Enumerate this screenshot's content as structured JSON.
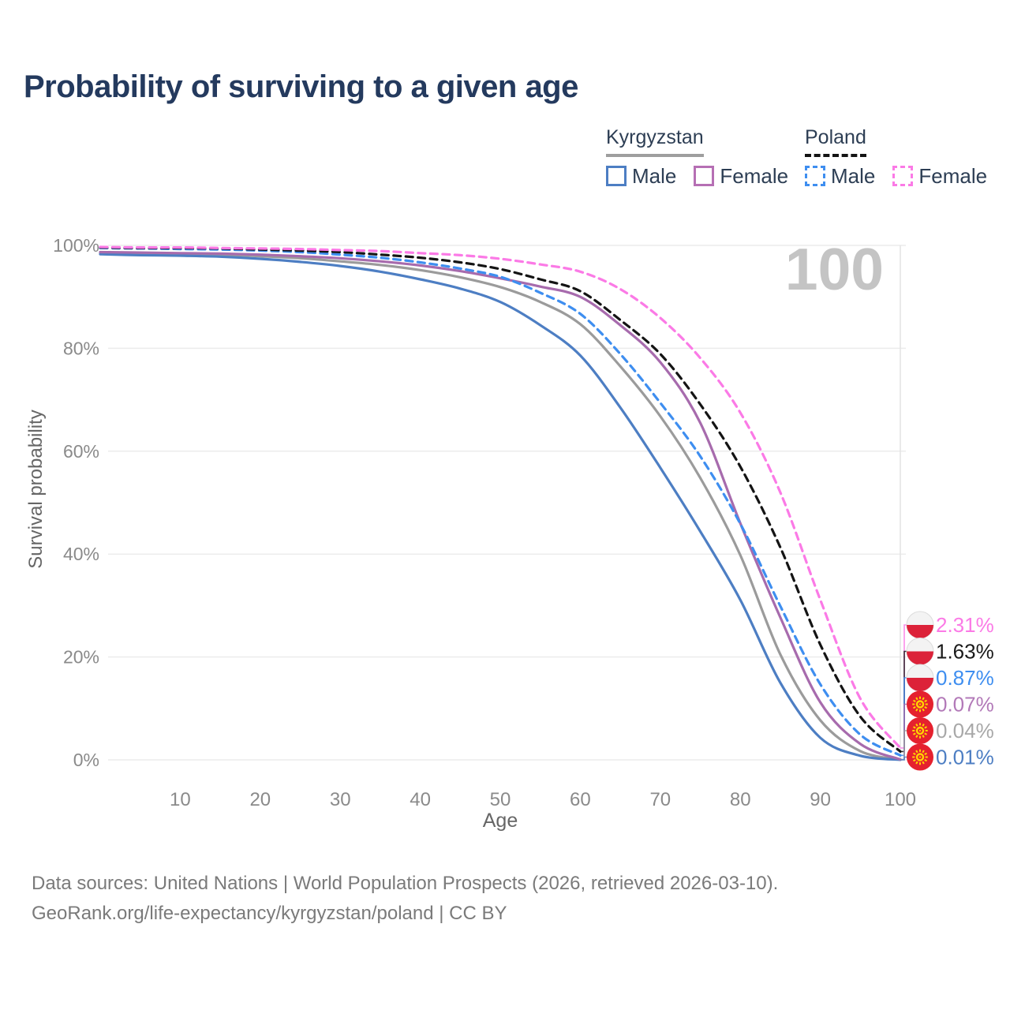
{
  "title": "Probability of surviving to a given age",
  "legend": {
    "groups": [
      {
        "label": "Kyrgyzstan",
        "line_style": "solid",
        "line_color": "#9e9e9e",
        "items": [
          {
            "label": "Male",
            "color": "#4d7ec3",
            "dashed": false
          },
          {
            "label": "Female",
            "color": "#b66fb4",
            "dashed": false
          }
        ]
      },
      {
        "label": "Poland",
        "line_style": "dashed",
        "line_color": "#141414",
        "items": [
          {
            "label": "Male",
            "color": "#3e8ef0",
            "dashed": true
          },
          {
            "label": "Female",
            "color": "#fb7ae6",
            "dashed": true
          }
        ]
      }
    ]
  },
  "chart_data": {
    "type": "line",
    "title": "Probability of surviving to a given age",
    "xlabel": "Age",
    "ylabel": "Survival probability",
    "xlim": [
      0,
      100
    ],
    "ylim": [
      0,
      100
    ],
    "grid": "horizontal",
    "legend_position": "top-right",
    "age_counter": "100",
    "colors": {
      "gridline": "#ececec",
      "tracker_line": "#e3e3e3",
      "watermark": "#c4c4c4",
      "tick_text": "#8a8a8a"
    },
    "x": [
      0,
      5,
      10,
      15,
      20,
      25,
      30,
      35,
      40,
      45,
      50,
      55,
      60,
      65,
      70,
      75,
      80,
      85,
      90,
      95,
      100
    ],
    "xtick_values": [
      10,
      20,
      30,
      40,
      50,
      60,
      70,
      80,
      90,
      100
    ],
    "xtick_labels": [
      "10",
      "20",
      "30",
      "40",
      "50",
      "60",
      "70",
      "80",
      "90",
      "100"
    ],
    "ytick_values": [
      0,
      20,
      40,
      60,
      80,
      100
    ],
    "ytick_labels": [
      "0%",
      "20%",
      "40%",
      "60%",
      "80%",
      "100%"
    ],
    "series": [
      {
        "name": "Kyrgyzstan",
        "country": "Kyrgyzstan",
        "sex": "all",
        "color": "#9b9b9b",
        "dash": false,
        "flag": "kyrgyzstan",
        "end_label": "0.04%",
        "end_label_color": "#a8a8a8",
        "values": [
          98.5,
          98.4,
          98.3,
          98.2,
          97.9,
          97.5,
          96.9,
          96.2,
          95.2,
          93.8,
          91.9,
          89.0,
          84.7,
          76.5,
          66.8,
          54.8,
          39.8,
          20.5,
          7.7,
          1.7,
          0.04
        ]
      },
      {
        "name": "Kyrgyzstan Male",
        "country": "Kyrgyzstan",
        "sex": "male",
        "color": "#4d7ec3",
        "dash": false,
        "flag": "kyrgyzstan",
        "end_label": "0.01%",
        "end_label_color": "#4d7ec3",
        "values": [
          98.3,
          98.1,
          98.0,
          97.8,
          97.4,
          96.8,
          96.0,
          94.9,
          93.4,
          91.6,
          89.0,
          84.5,
          78.6,
          68.5,
          56.8,
          44.4,
          31.1,
          15.0,
          4.3,
          0.8,
          0.01
        ]
      },
      {
        "name": "Kyrgyzstan Female",
        "country": "Kyrgyzstan",
        "sex": "female",
        "color": "#a76bad",
        "dash": false,
        "flag": "kyrgyzstan",
        "end_label": "0.07%",
        "end_label_color": "#b279b8",
        "values": [
          98.7,
          98.6,
          98.5,
          98.4,
          98.2,
          97.9,
          97.5,
          96.9,
          96.1,
          95.0,
          93.6,
          92.0,
          90.0,
          84.5,
          77.3,
          65.5,
          46.0,
          27.7,
          11.2,
          3.1,
          0.07
        ]
      },
      {
        "name": "Poland Male",
        "country": "Poland",
        "sex": "male",
        "color": "#3e8ef0",
        "dash": true,
        "flag": "poland",
        "end_label": "0.87%",
        "end_label_color": "#3e8ef0",
        "values": [
          99.5,
          99.4,
          99.3,
          99.2,
          99.0,
          98.7,
          98.2,
          97.6,
          96.7,
          95.5,
          93.9,
          90.8,
          86.7,
          78.9,
          69.4,
          59.0,
          45.9,
          29.9,
          14.7,
          4.9,
          0.87
        ]
      },
      {
        "name": "Poland",
        "country": "Poland",
        "sex": "all",
        "color": "#141414",
        "dash": true,
        "flag": "poland",
        "end_label": "1.63%",
        "end_label_color": "#1a1a1a",
        "values": [
          99.6,
          99.5,
          99.5,
          99.4,
          99.2,
          99.0,
          98.7,
          98.2,
          97.6,
          96.7,
          95.4,
          93.4,
          91.1,
          85.5,
          78.9,
          69.1,
          57.0,
          41.3,
          22.4,
          8.4,
          1.63
        ]
      },
      {
        "name": "Poland Female",
        "country": "Poland",
        "sex": "female",
        "color": "#fb7ae6",
        "dash": true,
        "flag": "poland",
        "end_label": "2.31%",
        "end_label_color": "#fb7ae6",
        "values": [
          99.7,
          99.6,
          99.6,
          99.5,
          99.4,
          99.3,
          99.1,
          98.9,
          98.5,
          98.1,
          97.4,
          96.3,
          94.9,
          91.5,
          85.9,
          78.1,
          67.5,
          52.0,
          31.1,
          11.9,
          2.31
        ]
      }
    ]
  },
  "footer": {
    "line1": "Data sources: United Nations | World Population Prospects (2026, retrieved 2026-03-10).",
    "line2": "GeoRank.org/life-expectancy/kyrgyzstan/poland | CC BY"
  }
}
